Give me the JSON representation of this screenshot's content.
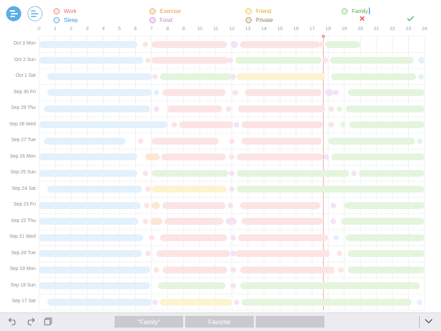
{
  "colors": {
    "work": "#fde4e4",
    "work_dot": "#f08b8b",
    "exercise": "#fde7d2",
    "exercise_dot": "#f2a86a",
    "friend": "#fdf3d0",
    "friend_dot": "#efc85a",
    "family": "#e5f5dd",
    "family_dot": "#8fd27a",
    "sleep": "#e2f1fb",
    "sleep_dot": "#5ab1ea",
    "food": "#f6e2f6",
    "food_dot": "#d894dc",
    "private": "#eee6dd",
    "private_dot": "#b49a82",
    "accent": "#5aaee6",
    "now_line": "#f3a9a9"
  },
  "legend": [
    {
      "key": "work",
      "label": "Work",
      "label_color": "#e86a6a"
    },
    {
      "key": "exercise",
      "label": "Exercise",
      "label_color": "#e8944a"
    },
    {
      "key": "friend",
      "label": "Friend",
      "label_color": "#d9a92a"
    },
    {
      "key": "family",
      "label": "Family",
      "label_color": "#5aa845",
      "editing": true
    },
    {
      "key": "sleep",
      "label": "Sleep",
      "label_color": "#3d9ae0"
    },
    {
      "key": "food",
      "label": "Food",
      "label_color": "#c77bcc"
    },
    {
      "key": "private",
      "label": "Private",
      "label_color": "#8a7a6a"
    }
  ],
  "header_icons": {
    "mode_a": "timeline-icon",
    "mode_b": "list-view-icon",
    "cancel": "close-icon",
    "confirm": "checkmark-icon"
  },
  "hours": [
    "0",
    "1",
    "2",
    "3",
    "4",
    "5",
    "6",
    "7",
    "8",
    "9",
    "10",
    "11",
    "12",
    "13",
    "14",
    "15",
    "16",
    "17",
    "18",
    "19",
    "20",
    "21",
    "22",
    "23",
    "24"
  ],
  "now_hour": 17.7,
  "days": [
    {
      "label": "Oct 3  Mon",
      "segments": [
        [
          "sleep",
          0,
          6.1
        ],
        [
          "work",
          7,
          11.7
        ],
        [
          "food",
          11.9,
          12.4
        ],
        [
          "work",
          12.5,
          17.5
        ],
        [
          "family",
          17.8,
          20
        ]
      ],
      "dots": [
        [
          "work",
          6.6
        ],
        [
          "work",
          17.6
        ]
      ]
    },
    {
      "label": "Oct 2  Sun",
      "segments": [
        [
          "sleep",
          0,
          6.5
        ],
        [
          "work",
          7,
          11.8
        ],
        [
          "family",
          12.2,
          17.6
        ],
        [
          "family",
          18.1,
          23.3
        ],
        [
          "sleep",
          23.6,
          24
        ]
      ],
      "dots": [
        [
          "work",
          6.8
        ],
        [
          "food",
          11.9
        ],
        [
          "work",
          17.8
        ]
      ]
    },
    {
      "label": "Oct 1  Sat",
      "segments": [
        [
          "sleep",
          0.5,
          7
        ],
        [
          "family",
          7.5,
          12
        ],
        [
          "friend",
          12.3,
          17.8
        ],
        [
          "family",
          18.2,
          23.5
        ]
      ],
      "dots": [
        [
          "work",
          7.2
        ],
        [
          "food",
          12.1
        ],
        [
          "sleep",
          23.8
        ]
      ]
    },
    {
      "label": "Sep 30  Fri",
      "segments": [
        [
          "sleep",
          0.5,
          7
        ],
        [
          "work",
          7.7,
          11.6
        ],
        [
          "work",
          12.8,
          17.6
        ],
        [
          "food",
          17.8,
          18.3
        ],
        [
          "family",
          19.2,
          24
        ]
      ],
      "dots": [
        [
          "sleep",
          7.3
        ],
        [
          "work",
          12.2
        ],
        [
          "food",
          18.5
        ]
      ]
    },
    {
      "label": "Sep 29  Thu",
      "segments": [
        [
          "sleep",
          0.3,
          6.9
        ],
        [
          "work",
          8,
          11.4
        ],
        [
          "work",
          12.4,
          17.8
        ],
        [
          "family",
          19.1,
          24
        ]
      ],
      "dots": [
        [
          "food",
          7.3
        ],
        [
          "food",
          11.8
        ],
        [
          "work",
          18.2
        ],
        [
          "family",
          18.7
        ]
      ]
    },
    {
      "label": "Sep 28  Wed",
      "segments": [
        [
          "sleep",
          0,
          8
        ],
        [
          "work",
          8.7,
          12.1
        ],
        [
          "work",
          12.6,
          17.7
        ],
        [
          "family",
          19.3,
          24
        ]
      ],
      "dots": [
        [
          "work",
          8.4
        ],
        [
          "food",
          12.3
        ],
        [
          "work",
          18.2
        ],
        [
          "family",
          18.9
        ]
      ]
    },
    {
      "label": "Sep 27  Tue",
      "segments": [
        [
          "sleep",
          0.3,
          5.4
        ],
        [
          "work",
          7,
          11.2
        ],
        [
          "work",
          12.6,
          17.6
        ],
        [
          "family",
          18,
          23.4
        ]
      ],
      "dots": [
        [
          "work",
          6.3
        ],
        [
          "work",
          12
        ],
        [
          "sleep",
          23.7
        ]
      ]
    },
    {
      "label": "Sep 26  Mon",
      "segments": [
        [
          "sleep",
          0,
          6.1
        ],
        [
          "exercise",
          6.6,
          7.5
        ],
        [
          "work",
          7.6,
          11.6
        ],
        [
          "work",
          12.3,
          17.7
        ],
        [
          "family",
          18.2,
          24
        ]
      ],
      "dots": [
        [
          "work",
          12
        ],
        [
          "food",
          17.9
        ]
      ]
    },
    {
      "label": "Sep 25  Sun",
      "segments": [
        [
          "sleep",
          0,
          6.1
        ],
        [
          "family",
          7,
          11.8
        ],
        [
          "family",
          12.3,
          19.3
        ],
        [
          "family",
          19.9,
          24
        ]
      ],
      "dots": [
        [
          "work",
          6.6
        ],
        [
          "food",
          12
        ],
        [
          "food",
          19.6
        ]
      ]
    },
    {
      "label": "Sep 24  Sat",
      "segments": [
        [
          "sleep",
          0.5,
          6.4
        ],
        [
          "friend",
          7,
          11.7
        ],
        [
          "family",
          12.3,
          24
        ]
      ],
      "dots": [
        [
          "work",
          6.8
        ],
        [
          "food",
          12
        ]
      ]
    },
    {
      "label": "Sep 23  Fri",
      "segments": [
        [
          "sleep",
          0,
          6.3
        ],
        [
          "exercise",
          7,
          7.5
        ],
        [
          "work",
          7.7,
          11.6
        ],
        [
          "work",
          12.5,
          17.5
        ],
        [
          "family",
          19,
          24
        ]
      ],
      "dots": [
        [
          "work",
          6.7
        ],
        [
          "food",
          11.9
        ],
        [
          "food",
          18.3
        ]
      ]
    },
    {
      "label": "Sep 22  Thu",
      "segments": [
        [
          "sleep",
          0,
          6.2
        ],
        [
          "exercise",
          6.9,
          7.7
        ],
        [
          "work",
          7.8,
          11.5
        ],
        [
          "food",
          11.6,
          12.3
        ],
        [
          "work",
          12.6,
          17.7
        ],
        [
          "family",
          18.8,
          24
        ]
      ],
      "dots": [
        [
          "work",
          6.6
        ],
        [
          "food",
          18.3
        ]
      ]
    },
    {
      "label": "Sep 21  Wed",
      "segments": [
        [
          "sleep",
          0,
          6.5
        ],
        [
          "work",
          7.5,
          11.7
        ],
        [
          "work",
          12.4,
          18
        ],
        [
          "family",
          19.1,
          24
        ]
      ],
      "dots": [
        [
          "work",
          7
        ],
        [
          "food",
          12.1
        ],
        [
          "sleep",
          18.5
        ]
      ]
    },
    {
      "label": "Sep 20  Tue",
      "segments": [
        [
          "sleep",
          0,
          6.4
        ],
        [
          "work",
          7.3,
          11.9
        ],
        [
          "work",
          12.2,
          18.1
        ],
        [
          "family",
          19.2,
          24
        ]
      ],
      "dots": [
        [
          "work",
          6.8
        ],
        [
          "food",
          12.1
        ],
        [
          "work",
          18.7
        ]
      ]
    },
    {
      "label": "Sep 19  Mon",
      "segments": [
        [
          "sleep",
          0,
          6.9
        ],
        [
          "work",
          7.7,
          11.7
        ],
        [
          "work",
          12.5,
          18.4
        ],
        [
          "family",
          19.2,
          24
        ]
      ],
      "dots": [
        [
          "work",
          7.3
        ],
        [
          "food",
          12.1
        ],
        [
          "work",
          18.8
        ]
      ]
    },
    {
      "label": "Sep 18  Sun",
      "segments": [
        [
          "sleep",
          0,
          6.9
        ],
        [
          "family",
          7.4,
          11.6
        ],
        [
          "family",
          12.5,
          23.7
        ]
      ],
      "dots": [
        [
          "food",
          12.1
        ]
      ]
    },
    {
      "label": "Sep 17  Sat",
      "segments": [
        [
          "sleep",
          0.5,
          7
        ],
        [
          "friend",
          7.5,
          12
        ],
        [
          "family",
          12.6,
          23.2
        ]
      ],
      "dots": [
        [
          "food",
          7.2
        ],
        [
          "food",
          12.3
        ],
        [
          "sleep",
          23.7
        ]
      ]
    }
  ],
  "toolbar": {
    "undo": "undo-icon",
    "redo": "redo-icon",
    "duplicate": "duplicate-icon",
    "collapse": "chevron-down-icon",
    "tabs": [
      "\"Family\"",
      "Favorite",
      ""
    ]
  }
}
